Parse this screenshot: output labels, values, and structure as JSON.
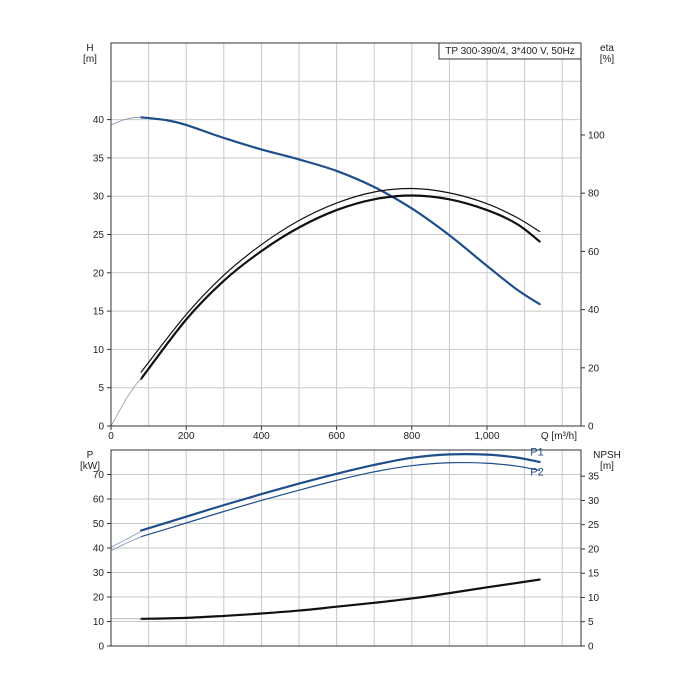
{
  "chart_data": [
    {
      "type": "line",
      "legend": "TP 300-390/4, 3*400 V, 50Hz",
      "x_unit": "Q [m³/h]",
      "x_range": [
        0,
        1250
      ],
      "x_ticks": [
        {
          "v": 0,
          "label": "0"
        },
        {
          "v": 200,
          "label": "200"
        },
        {
          "v": 400,
          "label": "400"
        },
        {
          "v": 600,
          "label": "600"
        },
        {
          "v": 800,
          "label": "800"
        },
        {
          "v": 1000,
          "label": "1,000"
        }
      ],
      "left_axis": {
        "name": "H",
        "unit": "[m]",
        "range": [
          0,
          50
        ],
        "ticks": [
          0,
          5,
          10,
          15,
          20,
          25,
          30,
          35,
          40
        ]
      },
      "right_axis": {
        "name": "eta",
        "unit": "[%]",
        "range": [
          0,
          131.6
        ],
        "ticks": [
          0,
          20,
          40,
          60,
          80,
          100
        ]
      },
      "grid": true,
      "series": [
        {
          "key": "head",
          "axis": "left",
          "color": "#1f4f8b",
          "width": 2.2,
          "x": [
            80,
            150,
            200,
            300,
            400,
            500,
            600,
            700,
            800,
            900,
            1000,
            1080,
            1140
          ],
          "y": [
            40.3,
            39.9,
            39.3,
            37.6,
            36.1,
            34.8,
            33.3,
            31.2,
            28.4,
            24.9,
            20.9,
            17.8,
            15.9
          ]
        },
        {
          "key": "head-ext",
          "axis": "left",
          "color": "#7a8fb0",
          "width": 0.8,
          "x": [
            0,
            30,
            60,
            80
          ],
          "y": [
            39.3,
            39.9,
            40.25,
            40.3
          ]
        },
        {
          "key": "eta-upper",
          "axis": "right",
          "color": "#111111",
          "width": 1.2,
          "x": [
            80,
            200,
            300,
            400,
            500,
            600,
            700,
            800,
            900,
            1000,
            1080,
            1140
          ],
          "y": [
            18.5,
            38.3,
            51.8,
            62.3,
            70.6,
            76.6,
            80.4,
            81.6,
            80.1,
            76.4,
            71.6,
            66.8
          ]
        },
        {
          "key": "eta-lower",
          "axis": "right",
          "color": "#111111",
          "width": 2.2,
          "x": [
            80,
            200,
            300,
            400,
            500,
            600,
            700,
            800,
            900,
            1000,
            1080,
            1140
          ],
          "y": [
            16.2,
            36.6,
            49.9,
            60.1,
            68.2,
            74.2,
            77.9,
            79.2,
            77.9,
            74.2,
            69.4,
            63.4
          ]
        },
        {
          "key": "eta-ext",
          "axis": "right",
          "color": "#999999",
          "width": 0.8,
          "x": [
            0,
            20,
            40,
            60,
            80
          ],
          "y": [
            0,
            4.6,
            9.2,
            13.1,
            16.5
          ]
        }
      ],
      "curve_labels": []
    },
    {
      "type": "line",
      "legend": "",
      "x_unit": "",
      "x_range": [
        0,
        1250
      ],
      "x_ticks": [],
      "left_axis": {
        "name": "P",
        "unit": "[kW]",
        "range": [
          0,
          80
        ],
        "ticks": [
          0,
          10,
          20,
          30,
          40,
          50,
          60,
          70
        ]
      },
      "right_axis": {
        "name": "NPSH",
        "unit": "[m]",
        "range": [
          0,
          40.4
        ],
        "ticks": [
          0,
          5,
          10,
          15,
          20,
          25,
          30,
          35
        ]
      },
      "grid": true,
      "series": [
        {
          "key": "p1",
          "axis": "left",
          "color": "#1f4f8b",
          "width": 2.2,
          "x": [
            80,
            200,
            300,
            400,
            500,
            600,
            700,
            800,
            900,
            1000,
            1080,
            1140
          ],
          "y": [
            47.1,
            52.8,
            57.5,
            62.0,
            66.3,
            70.3,
            73.9,
            76.8,
            78.2,
            78.1,
            76.9,
            75.1
          ]
        },
        {
          "key": "p2",
          "axis": "left",
          "color": "#1f4f8b",
          "width": 1.2,
          "x": [
            80,
            200,
            300,
            400,
            500,
            600,
            700,
            800,
            900,
            1000,
            1080,
            1140
          ],
          "y": [
            44.6,
            50.2,
            54.9,
            59.4,
            63.6,
            67.6,
            71.1,
            73.6,
            74.8,
            74.6,
            73.4,
            71.7
          ]
        },
        {
          "key": "p-ext",
          "axis": "left",
          "color": "#7a8fb0",
          "width": 0.8,
          "x": [
            0,
            40,
            80
          ],
          "y": [
            40.3,
            43.5,
            46.8
          ]
        },
        {
          "key": "p2-ext",
          "axis": "left",
          "color": "#7a8fb0",
          "width": 0.8,
          "x": [
            0,
            40,
            80
          ],
          "y": [
            38.9,
            41.9,
            44.6
          ]
        },
        {
          "key": "npsh",
          "axis": "right",
          "color": "#111111",
          "width": 2.2,
          "x": [
            80,
            200,
            300,
            400,
            500,
            600,
            700,
            800,
            900,
            1000,
            1080,
            1140
          ],
          "y": [
            5.6,
            5.8,
            6.2,
            6.7,
            7.3,
            8.1,
            8.9,
            9.8,
            10.9,
            12.1,
            13.0,
            13.7
          ]
        },
        {
          "key": "npsh-ext",
          "axis": "right",
          "color": "#aaaaaa",
          "width": 0.8,
          "x": [
            0,
            80
          ],
          "y": [
            5.6,
            5.6
          ]
        }
      ],
      "curve_labels": [
        {
          "text": "P1",
          "x": 1115,
          "y": 77.8,
          "color": "#1f4f8b"
        },
        {
          "text": "P2",
          "x": 1115,
          "y": 69.5,
          "color": "#1f4f8b"
        }
      ]
    }
  ]
}
